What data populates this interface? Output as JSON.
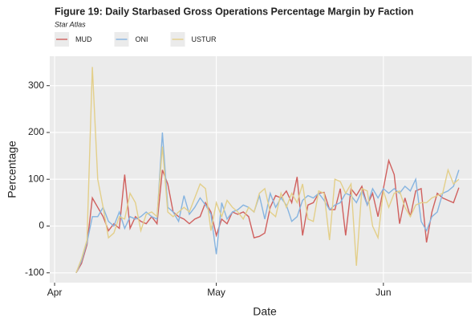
{
  "chart_data": {
    "type": "line",
    "title": "Figure 19: Daily Starbased Gross Operations Percentage Margin by Faction",
    "subtitle": "Star Atlas",
    "x_label": "Date",
    "y_label": "Percentage",
    "x": [
      4,
      5,
      6,
      7,
      8,
      9,
      10,
      11,
      12,
      13,
      14,
      15,
      16,
      17,
      18,
      19,
      20,
      21,
      22,
      23,
      24,
      25,
      26,
      27,
      28,
      29,
      30,
      31,
      32,
      33,
      34,
      35,
      36,
      37,
      38,
      39,
      40,
      41,
      42,
      43,
      44,
      45,
      46,
      47,
      48,
      49,
      50,
      51,
      52,
      53,
      54,
      55,
      56,
      57,
      58,
      59,
      60,
      61,
      62,
      63,
      64,
      65,
      66,
      67,
      68,
      69,
      70,
      71,
      72,
      73,
      74,
      75
    ],
    "series": [
      {
        "name": "MUD",
        "color": "#d0605e",
        "values": [
          -100,
          -80,
          -40,
          60,
          40,
          20,
          -10,
          5,
          -5,
          110,
          -5,
          20,
          10,
          5,
          20,
          5,
          120,
          90,
          30,
          20,
          15,
          5,
          15,
          20,
          50,
          30,
          -20,
          15,
          5,
          30,
          25,
          30,
          20,
          -25,
          -22,
          -15,
          40,
          65,
          60,
          75,
          50,
          105,
          -20,
          45,
          50,
          70,
          72,
          35,
          35,
          80,
          -20,
          80,
          65,
          85,
          45,
          70,
          20,
          80,
          140,
          110,
          5,
          60,
          20,
          75,
          80,
          -35,
          30,
          70,
          60,
          55,
          50,
          82
        ]
      },
      {
        "name": "ONI",
        "color": "#86b4e0",
        "values": [
          -100,
          -75,
          -35,
          20,
          20,
          40,
          10,
          0,
          30,
          -5,
          20,
          15,
          20,
          30,
          20,
          15,
          200,
          40,
          30,
          10,
          65,
          25,
          40,
          60,
          45,
          25,
          -60,
          50,
          15,
          30,
          35,
          45,
          40,
          30,
          65,
          15,
          70,
          40,
          60,
          45,
          10,
          20,
          55,
          65,
          60,
          70,
          55,
          35,
          45,
          50,
          70,
          65,
          50,
          75,
          45,
          80,
          60,
          80,
          70,
          80,
          70,
          85,
          75,
          100,
          10,
          -10,
          20,
          30,
          70,
          75,
          85,
          120
        ]
      },
      {
        "name": "USTUR",
        "color": "#e3cf8a",
        "values": [
          -100,
          -70,
          -30,
          340,
          100,
          40,
          -25,
          -15,
          20,
          15,
          70,
          50,
          -10,
          25,
          30,
          20,
          170,
          30,
          20,
          30,
          40,
          30,
          60,
          90,
          80,
          -10,
          50,
          20,
          55,
          40,
          30,
          15,
          40,
          30,
          70,
          80,
          30,
          20,
          70,
          40,
          70,
          50,
          90,
          15,
          10,
          75,
          70,
          -30,
          100,
          95,
          70,
          90,
          -85,
          80,
          75,
          0,
          -25,
          75,
          40,
          70,
          75,
          40,
          20,
          45,
          50,
          50,
          60,
          65,
          70,
          120,
          90,
          100
        ]
      }
    ],
    "xlim": [
      -0.9,
      77.4
    ],
    "xticks": [
      {
        "value": 0,
        "label": "Apr"
      },
      {
        "value": 30,
        "label": "May"
      },
      {
        "value": 61,
        "label": "Jun"
      }
    ],
    "ylim": [
      -121,
      363
    ],
    "yticks": [
      -100,
      0,
      100,
      200,
      300
    ],
    "grid": true
  }
}
